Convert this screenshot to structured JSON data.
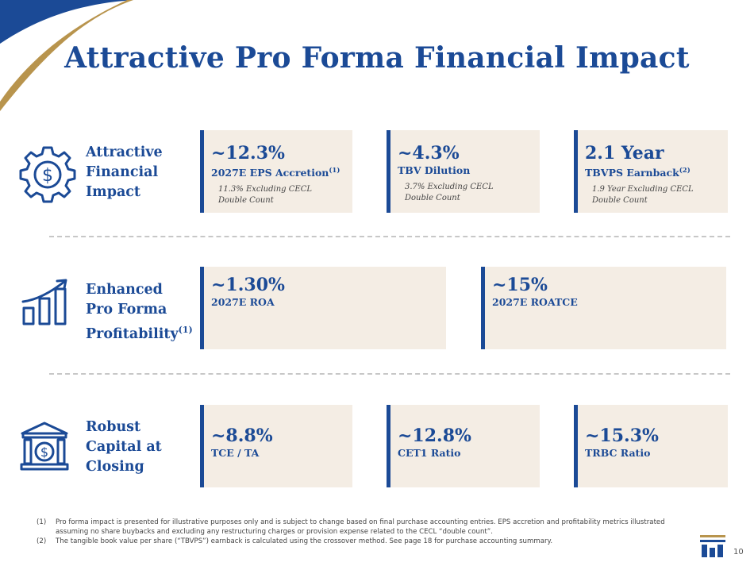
{
  "title": "Attractive Pro Forma Financial Impact",
  "colors": {
    "brand_blue": "#1b4a96",
    "gold": "#b8944d",
    "card_bg": "#f4ede4",
    "divider": "#c7c7c7"
  },
  "sections": [
    {
      "icon": "gear-dollar-icon",
      "label_lines": [
        "Attractive",
        "Financial",
        "Impact"
      ],
      "cards": [
        {
          "value": "~12.3%",
          "metric": "2027E EPS Accretion",
          "footnote": "(1)",
          "note_lines": [
            "11.3% Excluding CECL",
            "Double Count"
          ]
        },
        {
          "value": "~4.3%",
          "metric": "TBV Dilution",
          "footnote": "",
          "note_lines": [
            "3.7% Excluding CECL",
            "Double Count"
          ]
        },
        {
          "value": "2.1 Year",
          "metric": "TBVPS Earnback",
          "footnote": "(2)",
          "note_lines": [
            "1.9 Year Excluding CECL",
            "Double Count"
          ]
        }
      ]
    },
    {
      "icon": "growth-chart-icon",
      "label_lines": [
        "Enhanced",
        "Pro Forma",
        "Profitability"
      ],
      "label_footnote": "(1)",
      "cards": [
        {
          "value": "~1.30%",
          "metric": "2027E ROA"
        },
        {
          "value": "~15%",
          "metric": "2027E ROATCE"
        }
      ]
    },
    {
      "icon": "bank-dollar-icon",
      "label_lines": [
        "Robust",
        "Capital at",
        "Closing"
      ],
      "cards": [
        {
          "value": "~8.8%",
          "metric": "TCE / TA"
        },
        {
          "value": "~12.8%",
          "metric": "CET1 Ratio"
        },
        {
          "value": "~15.3%",
          "metric": "TRBC Ratio"
        }
      ]
    }
  ],
  "footnotes": [
    {
      "num": "(1)",
      "text": "Pro forma impact is presented for illustrative purposes only and is subject to change based on final purchase accounting entries. EPS accretion and profitability metrics illustrated assuming no share buybacks and excluding any restructuring charges or provision expense related to the CECL “double count”."
    },
    {
      "num": "(2)",
      "text": "The tangible book value per share (“TBVPS”) earnback is calculated using the crossover method. See page 18 for purchase accounting summary."
    }
  ],
  "page_number": "10"
}
